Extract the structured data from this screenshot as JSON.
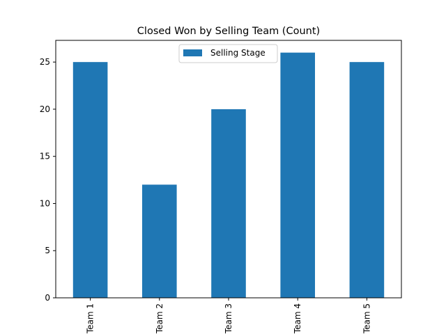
{
  "chart_data": {
    "type": "bar",
    "title": "Closed Won by Selling Team (Count)",
    "categories": [
      "Team 1",
      "Team 2",
      "Team 3",
      "Team 4",
      "Team 5"
    ],
    "series": [
      {
        "name": "Selling Stage",
        "values": [
          25,
          12,
          20,
          26,
          25
        ],
        "color": "#1f77b4"
      }
    ],
    "xlabel": "",
    "ylabel": "",
    "ylim": [
      0,
      27.3
    ],
    "yticks": [
      0,
      5,
      10,
      15,
      20,
      25
    ],
    "legend_position": "top-center",
    "grid": false
  }
}
